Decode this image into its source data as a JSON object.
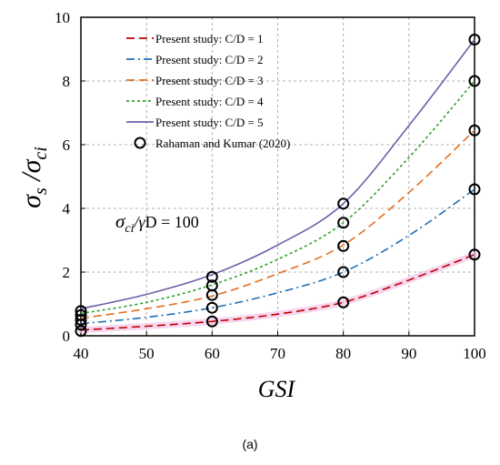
{
  "caption": "(a)",
  "chart_data": {
    "type": "line",
    "xlabel": "GSI",
    "ylabel_main": "σ",
    "ylabel_sub1": "s",
    "ylabel_sep": " /",
    "ylabel_sub2": "ci",
    "xlim": [
      40,
      100
    ],
    "ylim": [
      0,
      10
    ],
    "xticks": [
      40,
      50,
      60,
      70,
      80,
      90,
      100
    ],
    "yticks": [
      0,
      2,
      4,
      6,
      8,
      10
    ],
    "grid": true,
    "legend_position": "top-left",
    "annotation": {
      "sigma": "σ",
      "sub1": "ci",
      "mid": "/",
      "gamma": "γ",
      "rest": "D = 100"
    },
    "series": [
      {
        "name": "Present study: C/D = 1",
        "color": "#c00000",
        "dash": "dash",
        "x": [
          40,
          50,
          60,
          70,
          80,
          90,
          100
        ],
        "y": [
          0.18,
          0.3,
          0.45,
          0.68,
          1.05,
          1.75,
          2.55
        ]
      },
      {
        "name": "Present study: C/D = 2",
        "color": "#1f6fb4",
        "dash": "dashdot",
        "x": [
          40,
          50,
          60,
          70,
          80,
          90,
          100
        ],
        "y": [
          0.38,
          0.58,
          0.88,
          1.35,
          2.0,
          3.15,
          4.6
        ]
      },
      {
        "name": "Present study: C/D = 3",
        "color": "#e07020",
        "dash": "dash",
        "x": [
          40,
          50,
          60,
          70,
          80,
          90,
          100
        ],
        "y": [
          0.55,
          0.85,
          1.25,
          1.95,
          2.85,
          4.5,
          6.45
        ]
      },
      {
        "name": "Present study: C/D = 4",
        "color": "#2ca02c",
        "dash": "dot",
        "x": [
          40,
          50,
          60,
          70,
          80,
          90,
          100
        ],
        "y": [
          0.7,
          1.05,
          1.6,
          2.4,
          3.55,
          5.6,
          8.0
        ]
      },
      {
        "name": "Present study: C/D = 5",
        "color": "#7060a8",
        "dash": "solid",
        "x": [
          40,
          50,
          60,
          70,
          80,
          90,
          100
        ],
        "y": [
          0.85,
          1.3,
          1.92,
          2.85,
          4.15,
          6.6,
          9.3
        ]
      }
    ],
    "reference": {
      "name": "Rahaman and Kumar (2020)",
      "x": [
        40,
        40,
        40,
        40,
        40,
        60,
        60,
        60,
        60,
        60,
        80,
        80,
        80,
        80,
        80,
        100,
        100,
        100,
        100,
        100
      ],
      "y": [
        0.15,
        0.35,
        0.5,
        0.65,
        0.78,
        0.45,
        0.88,
        1.28,
        1.58,
        1.85,
        1.05,
        2.0,
        2.82,
        3.55,
        4.15,
        2.55,
        4.6,
        6.45,
        8.0,
        9.3
      ]
    }
  }
}
